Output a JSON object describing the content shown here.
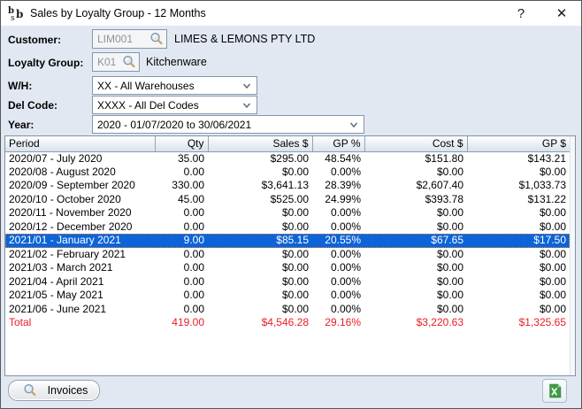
{
  "window": {
    "title": "Sales by Loyalty Group - 12 Months",
    "help_label": "?",
    "close_label": "✕"
  },
  "form": {
    "customer": {
      "label": "Customer:",
      "code": "LIM001",
      "name": "LIMES & LEMONS PTY LTD"
    },
    "loyalty_group": {
      "label": "Loyalty Group:",
      "code": "K01",
      "name": "Kitchenware"
    },
    "warehouse": {
      "label": "W/H:",
      "selected": "XX - All Warehouses"
    },
    "del_code": {
      "label": "Del Code:",
      "selected": "XXXX - All Del Codes"
    },
    "year": {
      "label": "Year:",
      "selected": "2020 - 01/07/2020 to 30/06/2021"
    }
  },
  "table": {
    "columns": [
      "Period",
      "Qty",
      "Sales $",
      "GP %",
      "Cost $",
      "GP $"
    ],
    "row_keys": [
      "period",
      "qty",
      "sales",
      "gp_pct",
      "cost",
      "gp"
    ],
    "rows": [
      {
        "period": "2020/07 - July 2020",
        "qty": "35.00",
        "sales": "$295.00",
        "gp_pct": "48.54%",
        "cost": "$151.80",
        "gp": "$143.21",
        "selected": false
      },
      {
        "period": "2020/08 - August 2020",
        "qty": "0.00",
        "sales": "$0.00",
        "gp_pct": "0.00%",
        "cost": "$0.00",
        "gp": "$0.00",
        "selected": false
      },
      {
        "period": "2020/09 - September 2020",
        "qty": "330.00",
        "sales": "$3,641.13",
        "gp_pct": "28.39%",
        "cost": "$2,607.40",
        "gp": "$1,033.73",
        "selected": false
      },
      {
        "period": "2020/10 - October 2020",
        "qty": "45.00",
        "sales": "$525.00",
        "gp_pct": "24.99%",
        "cost": "$393.78",
        "gp": "$131.22",
        "selected": false
      },
      {
        "period": "2020/11 - November 2020",
        "qty": "0.00",
        "sales": "$0.00",
        "gp_pct": "0.00%",
        "cost": "$0.00",
        "gp": "$0.00",
        "selected": false
      },
      {
        "period": "2020/12 - December 2020",
        "qty": "0.00",
        "sales": "$0.00",
        "gp_pct": "0.00%",
        "cost": "$0.00",
        "gp": "$0.00",
        "selected": false
      },
      {
        "period": "2021/01 - January 2021",
        "qty": "9.00",
        "sales": "$85.15",
        "gp_pct": "20.55%",
        "cost": "$67.65",
        "gp": "$17.50",
        "selected": true
      },
      {
        "period": "2021/02 - February 2021",
        "qty": "0.00",
        "sales": "$0.00",
        "gp_pct": "0.00%",
        "cost": "$0.00",
        "gp": "$0.00",
        "selected": false
      },
      {
        "period": "2021/03 - March 2021",
        "qty": "0.00",
        "sales": "$0.00",
        "gp_pct": "0.00%",
        "cost": "$0.00",
        "gp": "$0.00",
        "selected": false
      },
      {
        "period": "2021/04 - April 2021",
        "qty": "0.00",
        "sales": "$0.00",
        "gp_pct": "0.00%",
        "cost": "$0.00",
        "gp": "$0.00",
        "selected": false
      },
      {
        "period": "2021/05 - May 2021",
        "qty": "0.00",
        "sales": "$0.00",
        "gp_pct": "0.00%",
        "cost": "$0.00",
        "gp": "$0.00",
        "selected": false
      },
      {
        "period": "2021/06 - June 2021",
        "qty": "0.00",
        "sales": "$0.00",
        "gp_pct": "0.00%",
        "cost": "$0.00",
        "gp": "$0.00",
        "selected": false
      }
    ],
    "total": {
      "period": "Total",
      "qty": "419.00",
      "sales": "$4,546.28",
      "gp_pct": "29.16%",
      "cost": "$3,220.63",
      "gp": "$1,325.65"
    }
  },
  "footer": {
    "invoices_label": "Invoices"
  },
  "colors": {
    "dialog_bg": "#e2e8f1",
    "selection": "#0c64d8",
    "total_text": "#ec1c24",
    "excel_green": "#3d9c42"
  }
}
